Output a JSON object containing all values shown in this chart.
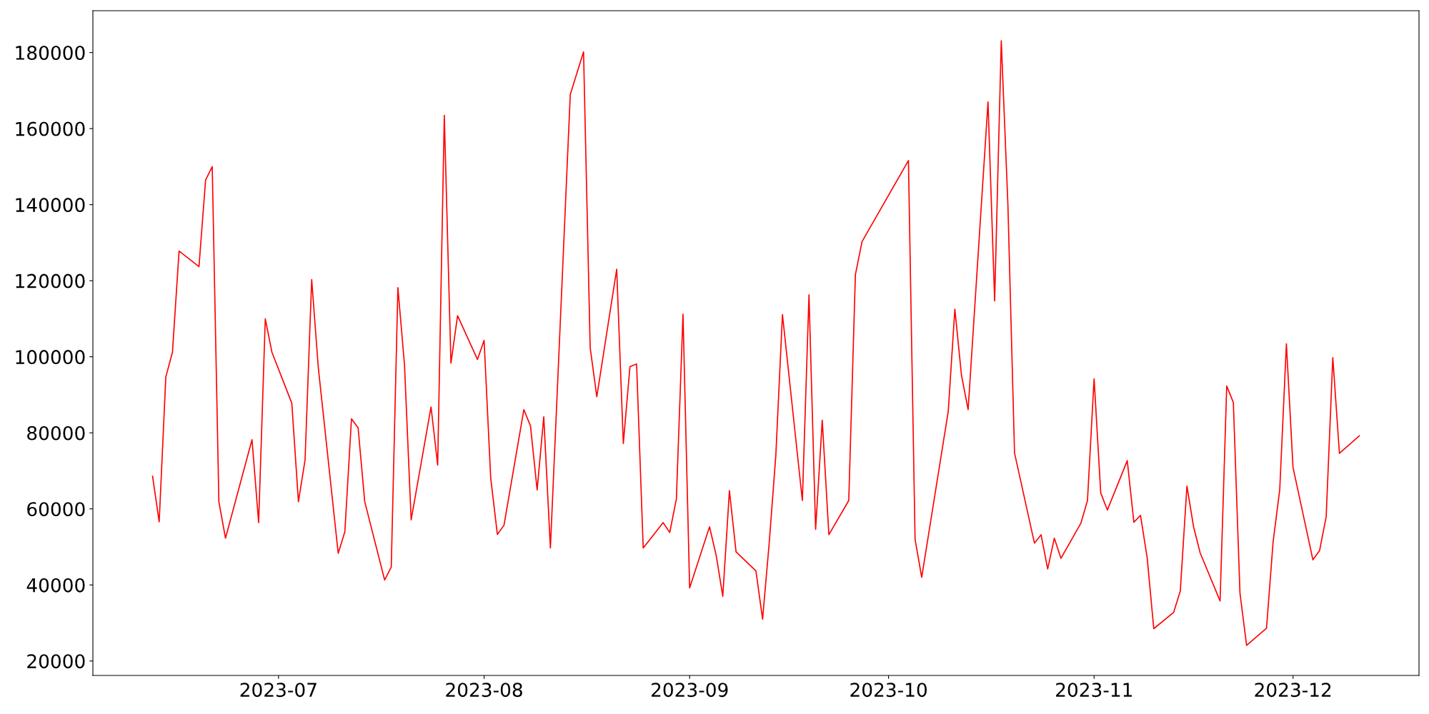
{
  "chart_data": {
    "type": "line",
    "x": [
      "2023-06-12",
      "2023-06-13",
      "2023-06-14",
      "2023-06-15",
      "2023-06-16",
      "2023-06-19",
      "2023-06-20",
      "2023-06-21",
      "2023-06-22",
      "2023-06-23",
      "2023-06-27",
      "2023-06-28",
      "2023-06-29",
      "2023-06-30",
      "2023-07-03",
      "2023-07-04",
      "2023-07-05",
      "2023-07-06",
      "2023-07-07",
      "2023-07-10",
      "2023-07-11",
      "2023-07-12",
      "2023-07-13",
      "2023-07-14",
      "2023-07-17",
      "2023-07-18",
      "2023-07-19",
      "2023-07-20",
      "2023-07-21",
      "2023-07-24",
      "2023-07-25",
      "2023-07-26",
      "2023-07-27",
      "2023-07-28",
      "2023-07-31",
      "2023-08-01",
      "2023-08-02",
      "2023-08-03",
      "2023-08-04",
      "2023-08-07",
      "2023-08-08",
      "2023-08-09",
      "2023-08-10",
      "2023-08-11",
      "2023-08-14",
      "2023-08-16",
      "2023-08-17",
      "2023-08-18",
      "2023-08-21",
      "2023-08-22",
      "2023-08-23",
      "2023-08-24",
      "2023-08-25",
      "2023-08-28",
      "2023-08-29",
      "2023-08-30",
      "2023-08-31",
      "2023-09-01",
      "2023-09-04",
      "2023-09-05",
      "2023-09-06",
      "2023-09-07",
      "2023-09-08",
      "2023-09-11",
      "2023-09-12",
      "2023-09-13",
      "2023-09-14",
      "2023-09-15",
      "2023-09-18",
      "2023-09-19",
      "2023-09-20",
      "2023-09-21",
      "2023-09-22",
      "2023-09-25",
      "2023-09-26",
      "2023-09-27",
      "2023-10-04",
      "2023-10-05",
      "2023-10-06",
      "2023-10-10",
      "2023-10-11",
      "2023-10-12",
      "2023-10-13",
      "2023-10-16",
      "2023-10-17",
      "2023-10-18",
      "2023-10-19",
      "2023-10-20",
      "2023-10-23",
      "2023-10-24",
      "2023-10-25",
      "2023-10-26",
      "2023-10-27",
      "2023-10-30",
      "2023-10-31",
      "2023-11-01",
      "2023-11-02",
      "2023-11-03",
      "2023-11-06",
      "2023-11-07",
      "2023-11-08",
      "2023-11-09",
      "2023-11-10",
      "2023-11-13",
      "2023-11-14",
      "2023-11-15",
      "2023-11-16",
      "2023-11-17",
      "2023-11-20",
      "2023-11-21",
      "2023-11-22",
      "2023-11-23",
      "2023-11-24",
      "2023-11-27",
      "2023-11-28",
      "2023-11-29",
      "2023-11-30",
      "2023-12-01",
      "2023-12-04",
      "2023-12-05",
      "2023-12-06",
      "2023-12-07",
      "2023-12-08",
      "2023-12-11"
    ],
    "series": [
      {
        "color": "#ff0000",
        "values": [
          68600,
          56600,
          94700,
          101200,
          127800,
          123700,
          146500,
          150000,
          61900,
          52300,
          78200,
          56400,
          110000,
          101200,
          87800,
          61900,
          72900,
          120300,
          97100,
          48300,
          54000,
          83700,
          81300,
          61900,
          41300,
          44700,
          118200,
          97800,
          57100,
          86800,
          71500,
          163500,
          98300,
          110800,
          99300,
          104300,
          68100,
          53300,
          55700,
          86100,
          81800,
          65000,
          84200,
          49700,
          169000,
          180200,
          102400,
          89500,
          123000,
          77200,
          97400,
          98100,
          49700,
          56400,
          53800,
          62600,
          111200,
          39200,
          55300,
          47800,
          37000,
          64800,
          48700,
          43700,
          31000,
          51000,
          74100,
          111100,
          62200,
          116300,
          54600,
          83300,
          53200,
          62200,
          121600,
          130300,
          151600,
          52000,
          42000,
          85600,
          112500,
          95100,
          86100,
          167000,
          114700,
          183100,
          140000,
          74700,
          51000,
          53200,
          44200,
          52300,
          47000,
          56200,
          62200,
          94200,
          64200,
          59700,
          72700,
          56500,
          58300,
          47200,
          28500,
          32800,
          38400,
          66000,
          55300,
          48400,
          35800,
          92300,
          88000,
          37800,
          24100,
          28600,
          51400,
          65100,
          103400,
          70900,
          46600,
          49000,
          57900,
          99800,
          74600,
          79200
        ]
      }
    ],
    "xlim": [
      "2023-06-03",
      "2023-12-20"
    ],
    "xticks": [
      {
        "value": "2023-07-01",
        "label": "2023-07"
      },
      {
        "value": "2023-08-01",
        "label": "2023-08"
      },
      {
        "value": "2023-09-01",
        "label": "2023-09"
      },
      {
        "value": "2023-10-01",
        "label": "2023-10"
      },
      {
        "value": "2023-11-01",
        "label": "2023-11"
      },
      {
        "value": "2023-12-01",
        "label": "2023-12"
      }
    ],
    "ylim": [
      16200,
      191000
    ],
    "yticks": [
      20000,
      40000,
      60000,
      80000,
      100000,
      120000,
      140000,
      160000,
      180000
    ],
    "grid": false,
    "legend": false,
    "marker": "none",
    "line_style": "solid"
  }
}
